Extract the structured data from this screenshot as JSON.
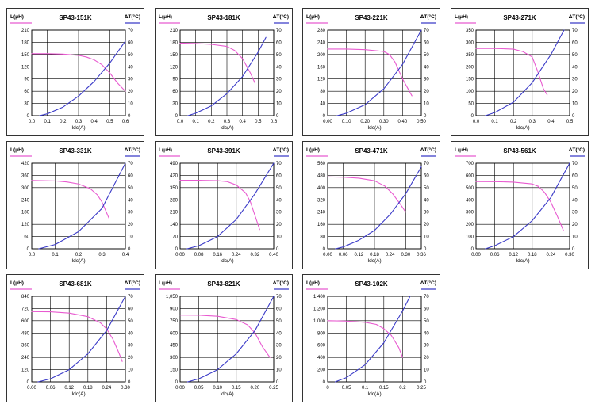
{
  "colors": {
    "inductance": "#e85ad0",
    "temperature": "#3b3bc8",
    "grid": "#000000",
    "frame": "#333333"
  },
  "labels": {
    "y_left": "L(μH)",
    "y_right": "ΔT(°C)",
    "x": "Idc(A)"
  },
  "chart_data": [
    {
      "type": "line",
      "title": "SP43-151K",
      "xlabel": "Idc(A)",
      "ylabel": "L(μH)",
      "ylabel_right": "ΔT(°C)",
      "xlim": [
        0,
        0.6
      ],
      "ylim": [
        0,
        210
      ],
      "ylim_right": [
        0,
        70
      ],
      "x_ticks": [
        "0.0",
        "0.1",
        "0.2",
        "0.3",
        "0.4",
        "0.5",
        "0.6"
      ],
      "y_ticks": [
        "0",
        "30",
        "60",
        "90",
        "120",
        "150",
        "180",
        "210"
      ],
      "y_right_ticks": [
        "0",
        "10",
        "20",
        "30",
        "40",
        "50",
        "60",
        "70"
      ],
      "series": [
        {
          "name": "L(μH)",
          "axis": "left",
          "x": [
            0,
            0.1,
            0.2,
            0.3,
            0.35,
            0.4,
            0.45,
            0.5,
            0.55,
            0.6
          ],
          "y": [
            152,
            152,
            151,
            148,
            144,
            137,
            125,
            105,
            80,
            60
          ]
        },
        {
          "name": "ΔT(°C)",
          "axis": "right",
          "x": [
            0.05,
            0.1,
            0.2,
            0.3,
            0.4,
            0.5,
            0.6
          ],
          "y": [
            0,
            1.5,
            7,
            16,
            28,
            43,
            61
          ]
        }
      ]
    },
    {
      "type": "line",
      "title": "SP43-181K",
      "xlabel": "Idc(A)",
      "ylabel": "L(μH)",
      "ylabel_right": "ΔT(°C)",
      "xlim": [
        0,
        0.6
      ],
      "ylim": [
        0,
        210
      ],
      "ylim_right": [
        0,
        70
      ],
      "x_ticks": [
        "0.0",
        "0.1",
        "0.2",
        "0.3",
        "0.4",
        "0.5",
        "0.6"
      ],
      "y_ticks": [
        "0",
        "30",
        "60",
        "90",
        "120",
        "150",
        "180",
        "210"
      ],
      "y_right_ticks": [
        "0",
        "10",
        "20",
        "30",
        "40",
        "50",
        "60",
        "70"
      ],
      "series": [
        {
          "name": "L(μH)",
          "axis": "left",
          "x": [
            0,
            0.1,
            0.2,
            0.3,
            0.35,
            0.4,
            0.45,
            0.48
          ],
          "y": [
            178,
            177,
            175,
            170,
            160,
            140,
            105,
            80
          ]
        },
        {
          "name": "ΔT(°C)",
          "axis": "right",
          "x": [
            0.05,
            0.1,
            0.2,
            0.3,
            0.4,
            0.5,
            0.55
          ],
          "y": [
            0,
            2,
            8,
            18,
            32,
            52,
            64
          ]
        }
      ]
    },
    {
      "type": "line",
      "title": "SP43-221K",
      "xlabel": "Idc(A)",
      "ylabel": "L(μH)",
      "ylabel_right": "ΔT(°C)",
      "xlim": [
        0,
        0.5
      ],
      "ylim": [
        0,
        280
      ],
      "ylim_right": [
        0,
        70
      ],
      "x_ticks": [
        "0.00",
        "0.10",
        "0.20",
        "0.30",
        "0.40",
        "0.50"
      ],
      "y_ticks": [
        "0",
        "40",
        "80",
        "120",
        "160",
        "200",
        "240",
        "280"
      ],
      "y_right_ticks": [
        "0",
        "10",
        "20",
        "30",
        "40",
        "50",
        "60",
        "70"
      ],
      "series": [
        {
          "name": "L(μH)",
          "axis": "left",
          "x": [
            0,
            0.1,
            0.2,
            0.3,
            0.33,
            0.36,
            0.4,
            0.45
          ],
          "y": [
            218,
            218,
            216,
            210,
            200,
            175,
            120,
            65
          ]
        },
        {
          "name": "ΔT(°C)",
          "axis": "right",
          "x": [
            0.05,
            0.1,
            0.2,
            0.3,
            0.4,
            0.5
          ],
          "y": [
            0,
            2,
            9,
            22,
            42,
            70
          ]
        }
      ]
    },
    {
      "type": "line",
      "title": "SP43-271K",
      "xlabel": "Idc(A)",
      "ylabel": "L(μH)",
      "ylabel_right": "ΔT(°C)",
      "xlim": [
        0,
        0.5
      ],
      "ylim": [
        0,
        350
      ],
      "ylim_right": [
        0,
        70
      ],
      "x_ticks": [
        "0.0",
        "0.1",
        "0.2",
        "0.3",
        "0.4",
        "0.5"
      ],
      "y_ticks": [
        "0",
        "50",
        "100",
        "150",
        "200",
        "250",
        "300",
        "350"
      ],
      "y_right_ticks": [
        "0",
        "10",
        "20",
        "30",
        "40",
        "50",
        "60",
        "70"
      ],
      "series": [
        {
          "name": "L(μH)",
          "axis": "left",
          "x": [
            0,
            0.1,
            0.2,
            0.25,
            0.3,
            0.33,
            0.36,
            0.38
          ],
          "y": [
            275,
            275,
            272,
            262,
            240,
            180,
            110,
            85
          ]
        },
        {
          "name": "ΔT(°C)",
          "axis": "right",
          "x": [
            0.05,
            0.1,
            0.2,
            0.3,
            0.4,
            0.47
          ],
          "y": [
            0,
            2.5,
            11,
            27,
            50,
            70
          ]
        }
      ]
    },
    {
      "type": "line",
      "title": "SP43-331K",
      "xlabel": "Idc(A)",
      "ylabel": "L(μH)",
      "ylabel_right": "ΔT(°C)",
      "xlim": [
        0,
        0.4
      ],
      "ylim": [
        0,
        420
      ],
      "ylim_right": [
        0,
        70
      ],
      "x_ticks": [
        "0.0",
        "0.1",
        "0.2",
        "0.3",
        "0.4"
      ],
      "y_ticks": [
        "0",
        "60",
        "120",
        "180",
        "240",
        "300",
        "360",
        "420"
      ],
      "y_right_ticks": [
        "0",
        "10",
        "20",
        "30",
        "40",
        "50",
        "60",
        "70"
      ],
      "series": [
        {
          "name": "L(μH)",
          "axis": "left",
          "x": [
            0,
            0.1,
            0.15,
            0.2,
            0.25,
            0.28,
            0.3,
            0.33
          ],
          "y": [
            335,
            333,
            328,
            318,
            295,
            265,
            230,
            150
          ]
        },
        {
          "name": "ΔT(°C)",
          "axis": "right",
          "x": [
            0.03,
            0.1,
            0.2,
            0.3,
            0.4
          ],
          "y": [
            0,
            3.5,
            14,
            33,
            70
          ]
        }
      ]
    },
    {
      "type": "line",
      "title": "SP43-391K",
      "xlabel": "Idc(A)",
      "ylabel": "L(μH)",
      "ylabel_right": "ΔT(°C)",
      "xlim": [
        0,
        0.4
      ],
      "ylim": [
        0,
        490
      ],
      "ylim_right": [
        0,
        70
      ],
      "x_ticks": [
        "0.00",
        "0.08",
        "0.16",
        "0.24",
        "0.32",
        "0.40"
      ],
      "y_ticks": [
        "0",
        "70",
        "140",
        "210",
        "280",
        "350",
        "420",
        "490"
      ],
      "y_right_ticks": [
        "0",
        "10",
        "20",
        "30",
        "40",
        "50",
        "60",
        "70"
      ],
      "series": [
        {
          "name": "L(μH)",
          "axis": "left",
          "x": [
            0,
            0.08,
            0.16,
            0.2,
            0.24,
            0.28,
            0.3,
            0.34
          ],
          "y": [
            392,
            392,
            390,
            385,
            365,
            320,
            270,
            110
          ]
        },
        {
          "name": "ΔT(°C)",
          "axis": "right",
          "x": [
            0.03,
            0.08,
            0.16,
            0.24,
            0.32,
            0.4
          ],
          "y": [
            0,
            2.5,
            10,
            24,
            45,
            70
          ]
        }
      ]
    },
    {
      "type": "line",
      "title": "SP43-471K",
      "xlabel": "Idc(A)",
      "ylabel": "L(μH)",
      "ylabel_right": "ΔT(°C)",
      "xlim": [
        0,
        0.36
      ],
      "ylim": [
        0,
        560
      ],
      "ylim_right": [
        0,
        70
      ],
      "x_ticks": [
        "0.00",
        "0.06",
        "0.12",
        "0.18",
        "0.24",
        "0.30",
        "0.36"
      ],
      "y_ticks": [
        "0",
        "80",
        "160",
        "240",
        "320",
        "400",
        "480",
        "560"
      ],
      "y_right_ticks": [
        "0",
        "10",
        "20",
        "30",
        "40",
        "50",
        "60",
        "70"
      ],
      "series": [
        {
          "name": "L(μH)",
          "axis": "left",
          "x": [
            0,
            0.06,
            0.12,
            0.18,
            0.22,
            0.25,
            0.28,
            0.3
          ],
          "y": [
            470,
            468,
            462,
            445,
            410,
            360,
            290,
            240
          ]
        },
        {
          "name": "ΔT(°C)",
          "axis": "right",
          "x": [
            0.03,
            0.06,
            0.12,
            0.18,
            0.24,
            0.3,
            0.36
          ],
          "y": [
            0,
            1.5,
            7,
            15,
            28,
            45,
            67
          ]
        }
      ]
    },
    {
      "type": "line",
      "title": "SP43-561K",
      "xlabel": "Idc(A)",
      "ylabel": "L(μH)",
      "ylabel_right": "ΔT(°C)",
      "xlim": [
        0,
        0.3
      ],
      "ylim": [
        0,
        700
      ],
      "ylim_right": [
        0,
        70
      ],
      "x_ticks": [
        "0.00",
        "0.06",
        "0.12",
        "0.18",
        "0.24",
        "0.30"
      ],
      "y_ticks": [
        "0",
        "100",
        "200",
        "300",
        "400",
        "500",
        "600",
        "700"
      ],
      "y_right_ticks": [
        "0",
        "10",
        "20",
        "30",
        "40",
        "50",
        "60",
        "70"
      ],
      "series": [
        {
          "name": "L(μH)",
          "axis": "left",
          "x": [
            0,
            0.06,
            0.12,
            0.18,
            0.2,
            0.22,
            0.24,
            0.26,
            0.28
          ],
          "y": [
            550,
            549,
            545,
            530,
            510,
            460,
            380,
            270,
            150
          ]
        },
        {
          "name": "ΔT(°C)",
          "axis": "right",
          "x": [
            0.03,
            0.06,
            0.12,
            0.18,
            0.24,
            0.3
          ],
          "y": [
            0,
            2.5,
            10,
            23,
            42,
            70
          ]
        }
      ]
    },
    {
      "type": "line",
      "title": "SP43-681K",
      "xlabel": "Idc(A)",
      "ylabel": "L(μH)",
      "ylabel_right": "ΔT(°C)",
      "xlim": [
        0,
        0.3
      ],
      "ylim": [
        0,
        840
      ],
      "ylim_right": [
        0,
        70
      ],
      "x_ticks": [
        "0.00",
        "0.06",
        "0.12",
        "0.18",
        "0.24",
        "0.30"
      ],
      "y_ticks": [
        "0",
        "120",
        "240",
        "360",
        "480",
        "600",
        "720",
        "840"
      ],
      "y_right_ticks": [
        "0",
        "10",
        "20",
        "30",
        "40",
        "50",
        "60",
        "70"
      ],
      "series": [
        {
          "name": "L(μH)",
          "axis": "left",
          "x": [
            0,
            0.06,
            0.12,
            0.18,
            0.22,
            0.24,
            0.26,
            0.28,
            0.29
          ],
          "y": [
            690,
            688,
            675,
            640,
            580,
            520,
            420,
            280,
            200
          ]
        },
        {
          "name": "ΔT(°C)",
          "axis": "right",
          "x": [
            0.02,
            0.06,
            0.12,
            0.18,
            0.24,
            0.3
          ],
          "y": [
            0,
            2.5,
            10,
            23,
            42,
            70
          ]
        }
      ]
    },
    {
      "type": "line",
      "title": "SP43-821K",
      "xlabel": "Idc(A)",
      "ylabel": "L(μH)",
      "ylabel_right": "ΔT(°C)",
      "xlim": [
        0,
        0.25
      ],
      "ylim": [
        0,
        1050
      ],
      "ylim_right": [
        0,
        70
      ],
      "x_ticks": [
        "0.00",
        "0.05",
        "0.10",
        "0.15",
        "0.20",
        "0.25"
      ],
      "y_ticks": [
        "0",
        "150",
        "300",
        "450",
        "600",
        "750",
        "900",
        "1,050"
      ],
      "y_right_ticks": [
        "0",
        "10",
        "20",
        "30",
        "40",
        "50",
        "60",
        "70"
      ],
      "series": [
        {
          "name": "L(μH)",
          "axis": "left",
          "x": [
            0,
            0.05,
            0.1,
            0.15,
            0.18,
            0.2,
            0.22,
            0.24
          ],
          "y": [
            820,
            818,
            805,
            765,
            700,
            600,
            430,
            300
          ]
        },
        {
          "name": "ΔT(°C)",
          "axis": "right",
          "x": [
            0.02,
            0.05,
            0.1,
            0.15,
            0.2,
            0.25
          ],
          "y": [
            0,
            2.5,
            10,
            23,
            42,
            70
          ]
        }
      ]
    },
    {
      "type": "line",
      "title": "SP43-102K",
      "xlabel": "Idc(A)",
      "ylabel": "L(μH)",
      "ylabel_right": "ΔT(°C)",
      "xlim": [
        0,
        0.25
      ],
      "ylim": [
        0,
        1400
      ],
      "ylim_right": [
        0,
        70
      ],
      "x_ticks": [
        "0",
        "0.05",
        "0.1",
        "0.15",
        "0.2",
        "0.25"
      ],
      "y_ticks": [
        "0",
        "200",
        "400",
        "600",
        "800",
        "1,000",
        "1,200",
        "1,400"
      ],
      "y_right_ticks": [
        "0",
        "10",
        "20",
        "30",
        "40",
        "50",
        "60",
        "70"
      ],
      "series": [
        {
          "name": "L(μH)",
          "axis": "left",
          "x": [
            0,
            0.05,
            0.1,
            0.13,
            0.15,
            0.17,
            0.19,
            0.2
          ],
          "y": [
            1000,
            995,
            975,
            940,
            870,
            760,
            560,
            400
          ]
        },
        {
          "name": "ΔT(°C)",
          "axis": "right",
          "x": [
            0.02,
            0.05,
            0.1,
            0.15,
            0.2,
            0.22
          ],
          "y": [
            0,
            3.5,
            14,
            32,
            58,
            70
          ]
        }
      ]
    }
  ]
}
